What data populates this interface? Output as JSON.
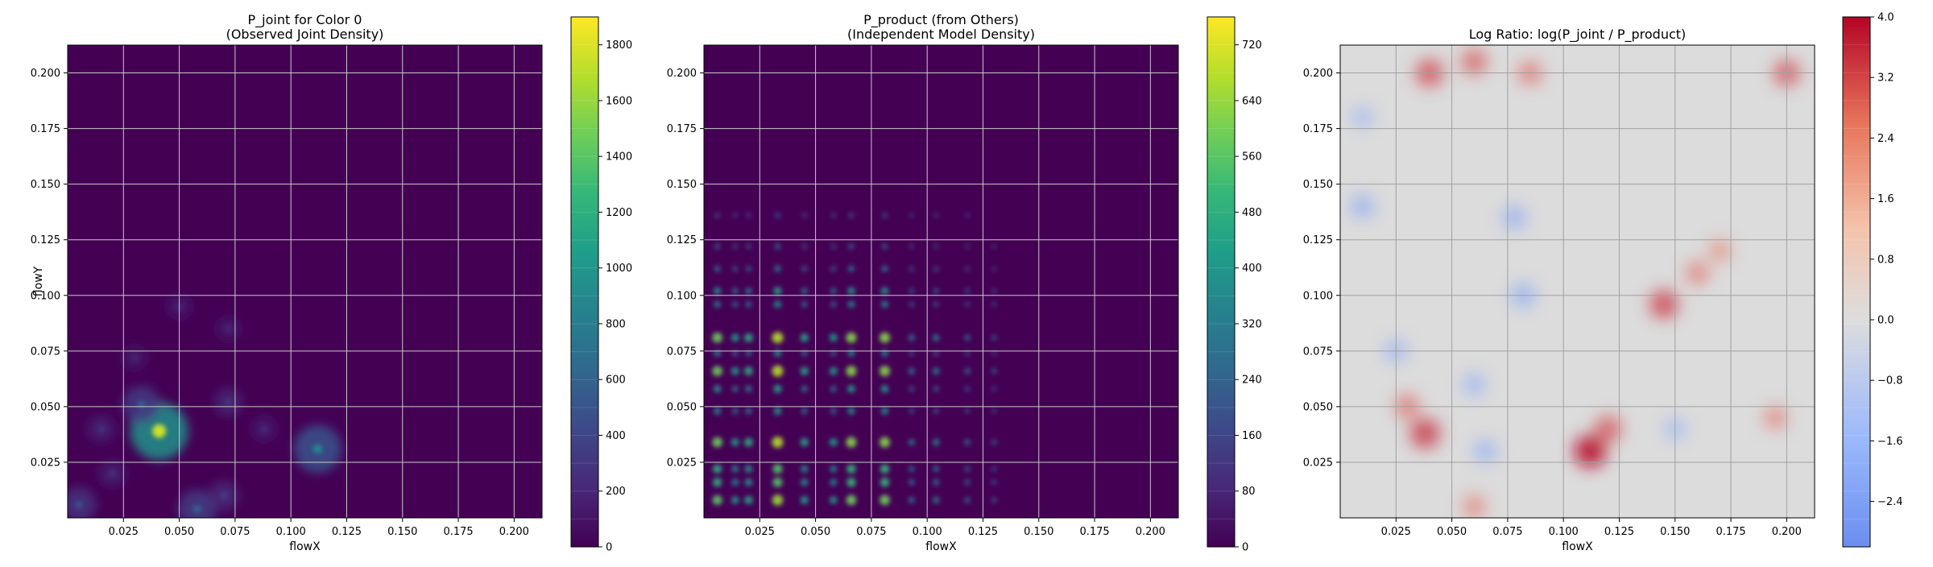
{
  "chart_data": [
    {
      "type": "heatmap",
      "title_line1": "P_joint for Color 0",
      "title_line2": "(Observed Joint Density)",
      "xlabel": "flowX",
      "ylabel": "flowY",
      "xlim": [
        0.0,
        0.2125
      ],
      "ylim": [
        0.0,
        0.2125
      ],
      "xticks": [
        "0.025",
        "0.050",
        "0.075",
        "0.100",
        "0.125",
        "0.150",
        "0.175",
        "0.200"
      ],
      "yticks": [
        "0.025",
        "0.050",
        "0.075",
        "0.100",
        "0.125",
        "0.150",
        "0.175",
        "0.200"
      ],
      "grid": true,
      "colormap": "viridis",
      "colorbar_range": [
        0,
        1900
      ],
      "colorbar_ticks": [
        "0",
        "200",
        "400",
        "600",
        "800",
        "1000",
        "1200",
        "1400",
        "1600",
        "1800"
      ],
      "hotspots": [
        {
          "x": 0.041,
          "y": 0.039,
          "value": 1750
        },
        {
          "x": 0.112,
          "y": 0.031,
          "value": 900
        },
        {
          "x": 0.033,
          "y": 0.051,
          "value": 600
        },
        {
          "x": 0.058,
          "y": 0.004,
          "value": 620
        },
        {
          "x": 0.005,
          "y": 0.006,
          "value": 520
        },
        {
          "x": 0.072,
          "y": 0.052,
          "value": 340
        },
        {
          "x": 0.07,
          "y": 0.01,
          "value": 380
        },
        {
          "x": 0.015,
          "y": 0.04,
          "value": 320
        },
        {
          "x": 0.05,
          "y": 0.095,
          "value": 230
        },
        {
          "x": 0.072,
          "y": 0.085,
          "value": 230
        },
        {
          "x": 0.03,
          "y": 0.072,
          "value": 230
        },
        {
          "x": 0.088,
          "y": 0.04,
          "value": 260
        },
        {
          "x": 0.02,
          "y": 0.02,
          "value": 300
        }
      ]
    },
    {
      "type": "heatmap",
      "title_line1": "P_product (from Others)",
      "title_line2": "(Independent Model Density)",
      "xlabel": "flowX",
      "ylabel": "",
      "xlim": [
        0.0,
        0.2125
      ],
      "ylim": [
        0.0,
        0.2125
      ],
      "xticks": [
        "0.025",
        "0.050",
        "0.075",
        "0.100",
        "0.125",
        "0.150",
        "0.175",
        "0.200"
      ],
      "yticks": [
        "0.025",
        "0.050",
        "0.075",
        "0.100",
        "0.125",
        "0.150",
        "0.175",
        "0.200"
      ],
      "grid": true,
      "colormap": "viridis",
      "colorbar_range": [
        0,
        760
      ],
      "colorbar_ticks": [
        "0",
        "80",
        "160",
        "240",
        "320",
        "400",
        "480",
        "560",
        "640",
        "720"
      ],
      "x_peaks": [
        {
          "x": 0.006,
          "w": 0.85
        },
        {
          "x": 0.014,
          "w": 0.55
        },
        {
          "x": 0.02,
          "w": 0.65
        },
        {
          "x": 0.033,
          "w": 1.0
        },
        {
          "x": 0.045,
          "w": 0.6
        },
        {
          "x": 0.058,
          "w": 0.55
        },
        {
          "x": 0.066,
          "w": 0.9
        },
        {
          "x": 0.081,
          "w": 0.9
        },
        {
          "x": 0.093,
          "w": 0.35
        },
        {
          "x": 0.104,
          "w": 0.4
        },
        {
          "x": 0.118,
          "w": 0.28
        },
        {
          "x": 0.13,
          "w": 0.2
        }
      ],
      "y_peaks": [
        {
          "y": 0.008,
          "w": 0.9
        },
        {
          "y": 0.016,
          "w": 0.75
        },
        {
          "y": 0.022,
          "w": 0.75
        },
        {
          "y": 0.034,
          "w": 0.95
        },
        {
          "y": 0.048,
          "w": 0.5
        },
        {
          "y": 0.058,
          "w": 0.55
        },
        {
          "y": 0.066,
          "w": 0.95
        },
        {
          "y": 0.074,
          "w": 0.45
        },
        {
          "y": 0.081,
          "w": 0.95
        },
        {
          "y": 0.096,
          "w": 0.45
        },
        {
          "y": 0.102,
          "w": 0.55
        },
        {
          "y": 0.112,
          "w": 0.35
        },
        {
          "y": 0.122,
          "w": 0.25
        },
        {
          "y": 0.136,
          "w": 0.18
        }
      ]
    },
    {
      "type": "heatmap",
      "title_line1": "Log Ratio: log(P_joint / P_product)",
      "title_line2": "",
      "xlabel": "flowX",
      "ylabel": "",
      "xlim": [
        0.0,
        0.2125
      ],
      "ylim": [
        0.0,
        0.2125
      ],
      "xticks": [
        "0.025",
        "0.050",
        "0.075",
        "0.100",
        "0.125",
        "0.150",
        "0.175",
        "0.200"
      ],
      "yticks": [
        "0.025",
        "0.050",
        "0.075",
        "0.100",
        "0.125",
        "0.150",
        "0.175",
        "0.200"
      ],
      "grid": true,
      "colormap": "coolwarm",
      "colorbar_range": [
        -3.0,
        4.0
      ],
      "colorbar_ticks": [
        "−2.4",
        "−1.6",
        "−0.8",
        "0.0",
        "0.8",
        "1.6",
        "2.4",
        "3.2",
        "4.0"
      ],
      "blobs": [
        {
          "x": 0.112,
          "y": 0.03,
          "value": 3.8
        },
        {
          "x": 0.038,
          "y": 0.038,
          "value": 2.6
        },
        {
          "x": 0.145,
          "y": 0.096,
          "value": 2.4
        },
        {
          "x": 0.04,
          "y": 0.2,
          "value": 2.2
        },
        {
          "x": 0.06,
          "y": 0.205,
          "value": 1.8
        },
        {
          "x": 0.2,
          "y": 0.2,
          "value": 2.0
        },
        {
          "x": 0.12,
          "y": 0.04,
          "value": 2.0
        },
        {
          "x": 0.03,
          "y": 0.05,
          "value": 1.5
        },
        {
          "x": 0.085,
          "y": 0.2,
          "value": 1.4
        },
        {
          "x": 0.195,
          "y": 0.045,
          "value": 1.2
        },
        {
          "x": 0.06,
          "y": 0.005,
          "value": 1.2
        },
        {
          "x": 0.17,
          "y": 0.12,
          "value": 1.0
        },
        {
          "x": 0.16,
          "y": 0.11,
          "value": 1.3
        },
        {
          "x": 0.01,
          "y": 0.14,
          "value": -1.4
        },
        {
          "x": 0.025,
          "y": 0.075,
          "value": -1.2
        },
        {
          "x": 0.082,
          "y": 0.1,
          "value": -1.5
        },
        {
          "x": 0.078,
          "y": 0.135,
          "value": -1.4
        },
        {
          "x": 0.06,
          "y": 0.06,
          "value": -1.2
        },
        {
          "x": 0.065,
          "y": 0.03,
          "value": -1.3
        },
        {
          "x": 0.15,
          "y": 0.04,
          "value": -1.0
        },
        {
          "x": 0.01,
          "y": 0.18,
          "value": -1.0
        }
      ]
    }
  ]
}
